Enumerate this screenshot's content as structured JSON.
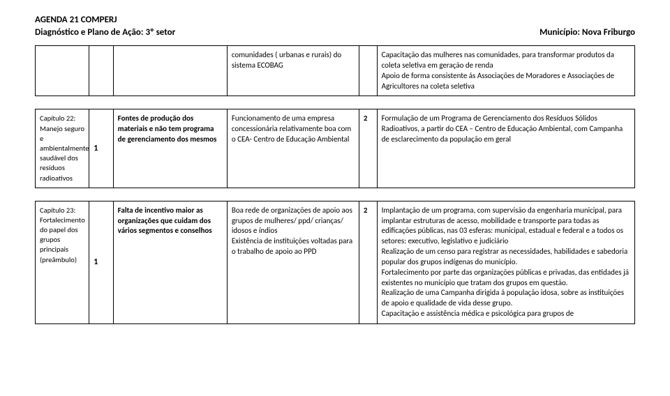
{
  "header": {
    "title_line1": "AGENDA 21 COMPERJ",
    "title_line2": "Diagnóstico e Plano de Ação: 3º setor",
    "municipio_label": "Município: Nova Friburgo"
  },
  "tables": [
    {
      "rows": [
        {
          "c0": "",
          "c1": "",
          "c2": "",
          "c3": "comunidades ( urbanas e rurais) do sistema  ECOBAG",
          "c4": "",
          "c5_lines": [
            "Capacitação das mulheres nas comunidades, para transformar produtos da coleta seletiva em geração de renda",
            " Apoio de forma consistente ás Associações de Moradores e Associações de Agricultores na coleta seletiva"
          ]
        }
      ]
    },
    {
      "rows": [
        {
          "c0": "Capítulo 22: Manejo seguro e ambientalmente saudável dos resíduos radioativos",
          "c1": "1",
          "c2": "Fontes de produção dos materiais e não tem programa de gerenciamento dos mesmos",
          "c3": "Funcionamento de uma empresa concessionária relativamente boa com o CEA- Centro de Educação Ambiental",
          "c4": "2",
          "c5_lines": [
            " Formulação de um Programa de Gerenciamento dos Resíduos Sólidos Radioativos, a partir do CEA – Centro de Educação Ambiental, com Campanha de esclarecimento da população em geral"
          ]
        }
      ]
    },
    {
      "rows": [
        {
          "c0": "Capítulo 23: Fortalecimento do papel dos grupos principais (preâmbulo)",
          "c1": "1",
          "c2": "Falta  de incentivo  maior as organizações que cuidam dos vários segmentos e conselhos",
          "c3": "Boa rede de organizações de apoio aos grupos de mulheres/ ppd/ crianças/ idosos e índios\nExistência de instituições voltadas para o trabalho de apoio ao PPD",
          "c4": "2",
          "c5_lines": [
            "Implantação de um programa, com supervisão da engenharia municipal, para implantar estruturas de acesso, mobilidade e transporte para todas as edificações públicas, nas 03 esferas: municipal, estadual e federal e a todos os setores: executivo, legislativo e judiciário",
            " Realização de um censo para registrar as necessidades, habilidades e sabedoria popular dos grupos indígenas do município.",
            " Fortalecimento por parte das organizações públicas e privadas, das entidades já existentes no município que tratam dos grupos em questão.",
            "Realização de uma Campanha dirigida á população idosa, sobre as instituições de apoio e qualidade de vida desse grupo.",
            " Capacitação e assistência médica e psicológica para grupos de"
          ]
        }
      ]
    }
  ]
}
